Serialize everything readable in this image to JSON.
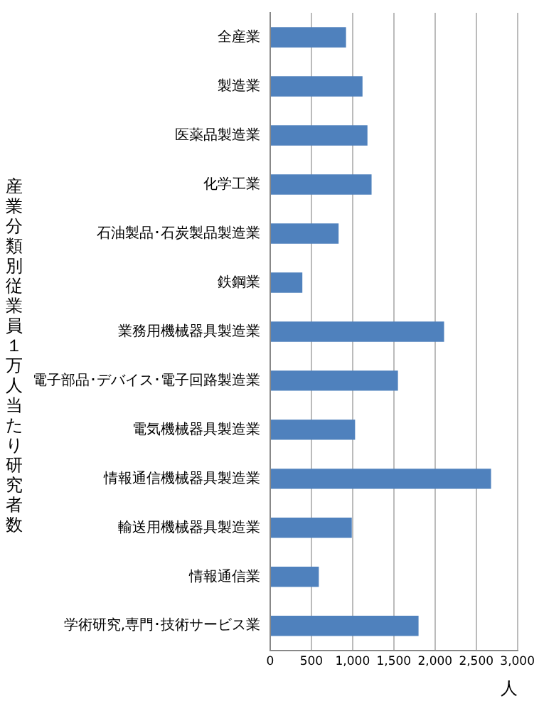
{
  "chart_data": {
    "type": "bar",
    "orientation": "horizontal",
    "ylabel": "産業分類別従業員１万人当たり研究者数",
    "xlabel": "人",
    "categories": [
      "全産業",
      "製造業",
      "医薬品製造業",
      "化学工業",
      "石油製品･石炭製品製造業",
      "鉄鋼業",
      "業務用機械器具製造業",
      "電子部品･デバイス･電子回路製造業",
      "電気機械器具製造業",
      "情報通信機械器具製造業",
      "輸送用機械器具製造業",
      "情報通信業",
      "学術研究,専門･技術サービス業"
    ],
    "values": [
      920,
      1120,
      1180,
      1230,
      830,
      390,
      2110,
      1550,
      1030,
      2680,
      990,
      590,
      1800
    ],
    "color": "#4f81bd",
    "xlim": [
      0,
      3000
    ],
    "xticks": [
      0,
      {
        "value": 500,
        "label": "500"
      },
      {
        "value": 1000,
        "label": "1,000"
      },
      {
        "value": 1500,
        "label": "1,500"
      },
      {
        "value": 2000,
        "label": "2,000"
      },
      {
        "value": 2500,
        "label": "2,500"
      },
      {
        "value": 3000,
        "label": "3,000"
      }
    ],
    "grid": "x",
    "legend": false
  }
}
